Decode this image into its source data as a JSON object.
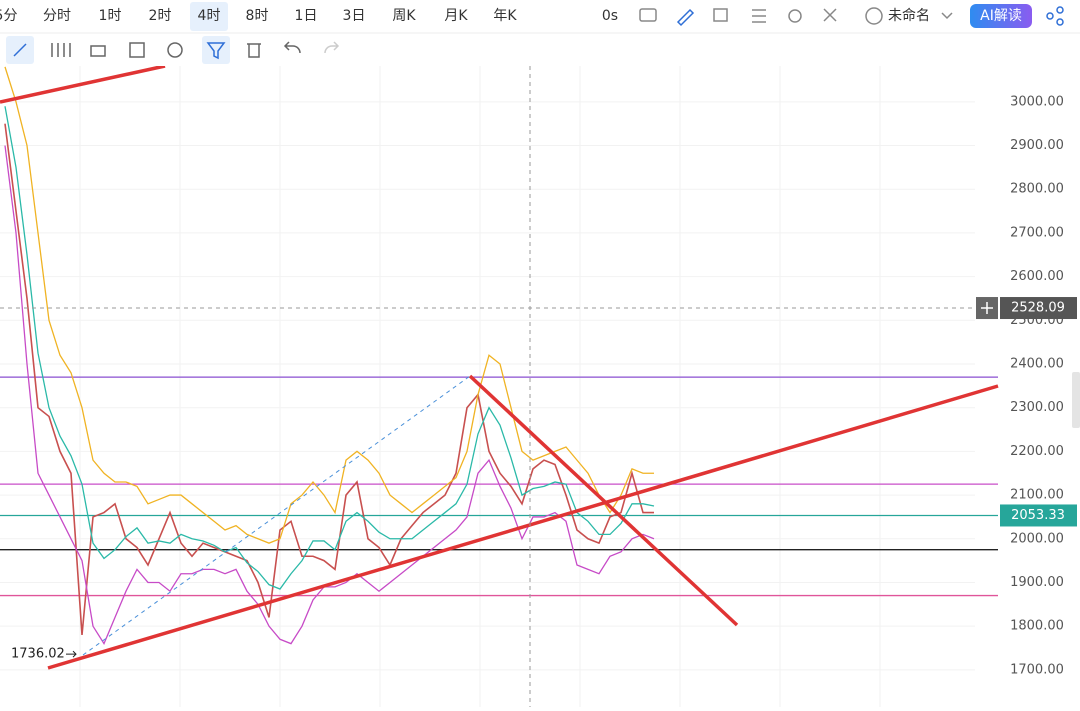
{
  "toolbar": {
    "intervals": [
      "5分",
      "分时",
      "1时",
      "2时",
      "4时",
      "8时",
      "1日",
      "3日",
      "周K",
      "月K",
      "年K"
    ],
    "timer": "0s",
    "layout_name": "未命名",
    "ai_button": "AI解读"
  },
  "chart_data": {
    "type": "line",
    "categories": [
      null,
      null,
      null,
      null,
      null,
      null,
      null,
      null,
      null,
      null,
      null,
      null,
      null,
      null,
      null,
      null,
      null,
      null,
      null,
      null,
      null,
      null,
      null,
      null,
      null,
      null,
      null,
      null,
      null,
      null,
      null,
      null,
      null,
      null,
      null,
      null,
      null,
      null,
      null,
      null,
      null,
      null,
      null,
      null,
      null,
      null,
      null,
      null,
      null,
      null,
      null,
      null,
      null,
      null,
      null,
      null,
      null,
      null,
      null,
      null
    ],
    "series": [
      {
        "color": "#c8504f",
        "values": [
          2950,
          2750,
          2550,
          2300,
          2280,
          2200,
          2150,
          1780,
          2050,
          2060,
          2080,
          2000,
          1980,
          1940,
          2000,
          2060,
          1990,
          1960,
          1990,
          1980,
          1970,
          1960,
          1950,
          1900,
          1820,
          2020,
          2040,
          1960,
          1960,
          1950,
          1930,
          2100,
          2130,
          2000,
          1980,
          1940,
          2000,
          2030,
          2060,
          2080,
          2100,
          2150,
          2300,
          2330,
          2200,
          2150,
          2120,
          2080,
          2160,
          2180,
          2170,
          2100,
          2020,
          2000,
          1990,
          2050,
          2060,
          2150,
          2060,
          2060
        ]
      },
      {
        "color": "#f0b323",
        "values": [
          3080,
          3000,
          2900,
          2700,
          2500,
          2420,
          2380,
          2300,
          2180,
          2150,
          2130,
          2130,
          2120,
          2080,
          2090,
          2100,
          2100,
          2080,
          2060,
          2040,
          2020,
          2030,
          2010,
          2000,
          1990,
          2000,
          2080,
          2100,
          2130,
          2100,
          2060,
          2180,
          2200,
          2180,
          2150,
          2100,
          2080,
          2060,
          2080,
          2100,
          2120,
          2140,
          2200,
          2330,
          2420,
          2400,
          2300,
          2200,
          2180,
          2190,
          2200,
          2210,
          2180,
          2150,
          2100,
          2060,
          2100,
          2160,
          2150,
          2150
        ]
      },
      {
        "color": "#2bb9a8",
        "values": [
          2990,
          2850,
          2650,
          2425,
          2300,
          2235,
          2190,
          2125,
          1990,
          1955,
          1975,
          2005,
          2025,
          1990,
          1995,
          1990,
          2010,
          2000,
          1995,
          1985,
          1970,
          1980,
          1945,
          1925,
          1895,
          1885,
          1920,
          1950,
          1995,
          1995,
          1975,
          2040,
          2060,
          2040,
          2015,
          2000,
          2000,
          2000,
          2020,
          2040,
          2060,
          2080,
          2125,
          2240,
          2300,
          2260,
          2185,
          2100,
          2115,
          2120,
          2130,
          2125,
          2060,
          2040,
          2010,
          2010,
          2035,
          2080,
          2080,
          2075
        ]
      },
      {
        "color": "#c74bc7",
        "values": [
          2900,
          2700,
          2400,
          2150,
          2100,
          2050,
          2000,
          1950,
          1800,
          1760,
          1820,
          1880,
          1930,
          1900,
          1900,
          1880,
          1920,
          1920,
          1930,
          1930,
          1920,
          1930,
          1880,
          1850,
          1800,
          1770,
          1760,
          1800,
          1860,
          1890,
          1890,
          1900,
          1920,
          1900,
          1880,
          1900,
          1920,
          1940,
          1960,
          1980,
          2000,
          2020,
          2050,
          2150,
          2180,
          2120,
          2070,
          2000,
          2050,
          2050,
          2060,
          2040,
          1940,
          1930,
          1920,
          1960,
          1970,
          2000,
          2010,
          2000
        ]
      }
    ],
    "ylim": [
      1615,
      3082
    ],
    "yticks": [
      {
        "value": 3000,
        "label": "3000.00"
      },
      {
        "value": 2900,
        "label": "2900.00"
      },
      {
        "value": 2800,
        "label": "2800.00"
      },
      {
        "value": 2700,
        "label": "2700.00"
      },
      {
        "value": 2600,
        "label": "2600.00"
      },
      {
        "value": 2500,
        "label": "2500.00"
      },
      {
        "value": 2400,
        "label": "2400.00"
      },
      {
        "value": 2300,
        "label": "2300.00"
      },
      {
        "value": 2200,
        "label": "2200.00"
      },
      {
        "value": 2100,
        "label": "2100.00"
      },
      {
        "value": 2000,
        "label": "2000.00"
      },
      {
        "value": 1900,
        "label": "1900.00"
      },
      {
        "value": 1800,
        "label": "1800.00"
      },
      {
        "value": 1700,
        "label": "1700.00"
      }
    ],
    "grid": true,
    "levels": [
      {
        "value": 2370,
        "color": "#8a4fd0"
      },
      {
        "value": 2125,
        "color": "#c84fc8"
      },
      {
        "value": 1975,
        "color": "#222222"
      },
      {
        "value": 1870,
        "color": "#e0559a"
      }
    ],
    "last_price": {
      "value": 2053.33,
      "color": "#26a69a"
    },
    "crosshair_price": 2528.09,
    "low_label": 1736.02
  }
}
